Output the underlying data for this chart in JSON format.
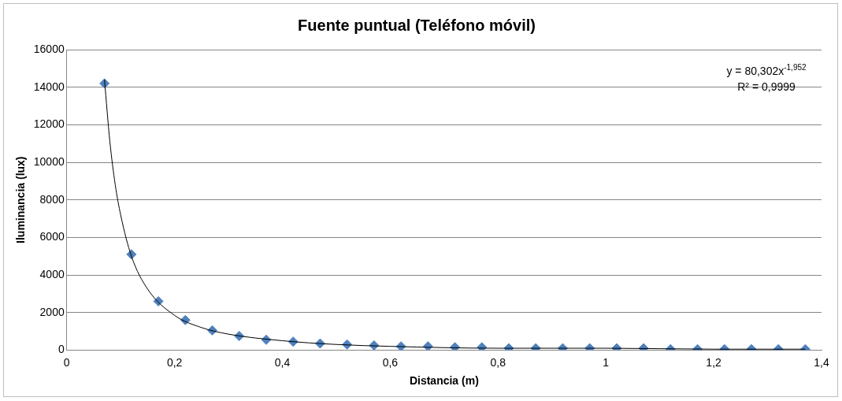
{
  "chart_data": {
    "type": "scatter",
    "title": "Fuente puntual (Teléfono móvil)",
    "xlabel": "Distancia (m)",
    "ylabel": "Iluminancia (lux)",
    "x": [
      0.07,
      0.12,
      0.17,
      0.22,
      0.27,
      0.32,
      0.37,
      0.42,
      0.47,
      0.52,
      0.57,
      0.62,
      0.67,
      0.72,
      0.77,
      0.82,
      0.87,
      0.92,
      0.97,
      1.02,
      1.07,
      1.12,
      1.17,
      1.22,
      1.27,
      1.32,
      1.37
    ],
    "series": [
      {
        "color": "#4f81bd",
        "values": [
          14200,
          5100,
          2600,
          1600,
          1050,
          750,
          550,
          450,
          350,
          300,
          250,
          200,
          200,
          150,
          150,
          100,
          100,
          100,
          100,
          100,
          100,
          50,
          50,
          50,
          50,
          50,
          50
        ]
      },
      {
        "type": "line",
        "marker": "none",
        "color": "#000000",
        "x": [
          0.07,
          0.08,
          0.09,
          0.1,
          0.12,
          0.15,
          0.2,
          0.25,
          0.3,
          0.4,
          0.5,
          0.6,
          0.8,
          1.0,
          1.2,
          1.37
        ],
        "values": [
          14400,
          11100,
          8800,
          7200,
          5000,
          3250,
          1850,
          1200,
          850,
          500,
          300,
          200,
          100,
          100,
          50,
          50
        ]
      }
    ],
    "xlim": [
      0,
      1.4
    ],
    "xticks": [
      0,
      {
        "value": 0.2,
        "label": "0,2"
      },
      {
        "value": 0.4,
        "label": "0,4"
      },
      {
        "value": 0.6,
        "label": "0,6"
      },
      {
        "value": 0.8,
        "label": "0,8"
      },
      {
        "value": 1,
        "label": "1"
      },
      {
        "value": 1.2,
        "label": "1,2"
      },
      {
        "value": 1.4,
        "label": "1,4"
      }
    ],
    "ylim": [
      0,
      16000
    ],
    "yticks": [
      0,
      2000,
      4000,
      6000,
      8000,
      10000,
      12000,
      14000,
      16000
    ],
    "grid": "y",
    "legend": false,
    "marker": "diamond",
    "annotations": [
      "y = 80,302x$^{-1,952}$",
      "R² = 0,9999"
    ]
  }
}
